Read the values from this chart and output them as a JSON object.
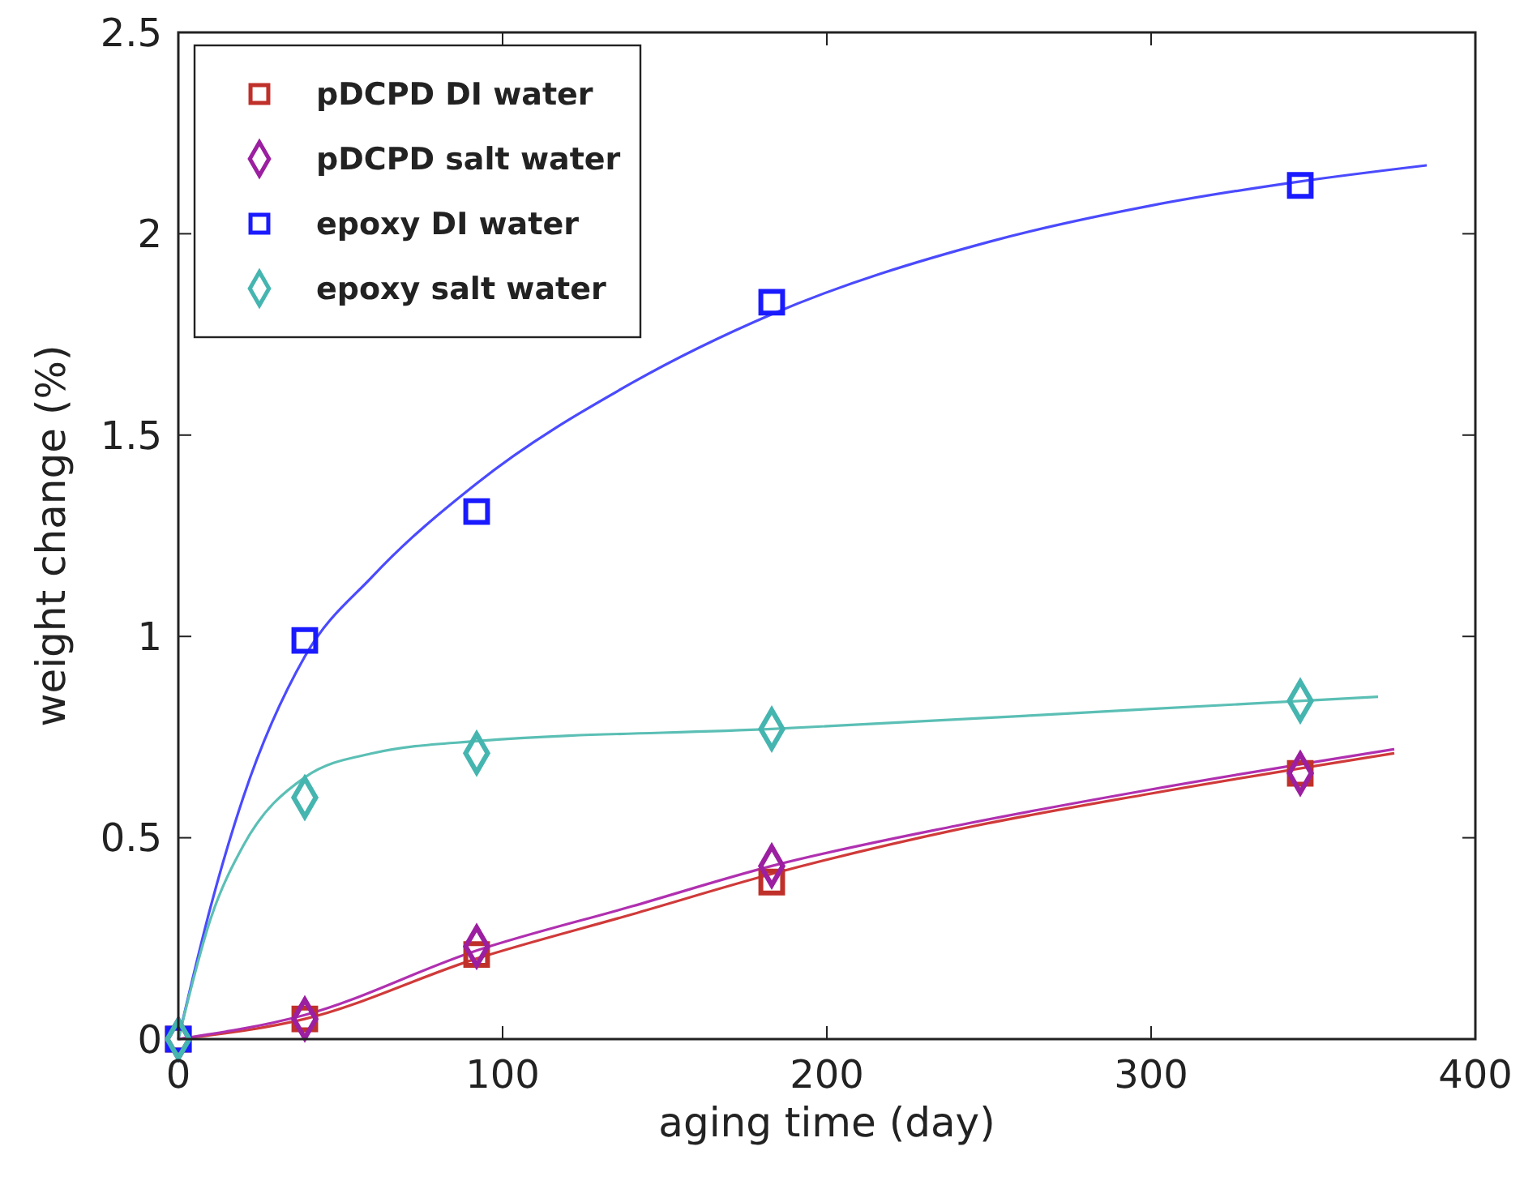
{
  "chart_data": {
    "type": "scatter",
    "xlabel": "aging time (day)",
    "ylabel": "weight change (%)",
    "x": [
      0,
      39,
      92,
      183,
      346
    ],
    "xlim": [
      0,
      400
    ],
    "xticks": [
      0,
      100,
      200,
      300,
      400
    ],
    "ylim": [
      0,
      2.5
    ],
    "yticks": [
      0,
      0.5,
      1,
      1.5,
      2,
      2.5
    ],
    "grid": false,
    "legend": "top left",
    "series": [
      {
        "name": "pDCPD DI water",
        "marker": "square",
        "color": "#c0302a",
        "values": [
          0,
          0.05,
          0.21,
          0.39,
          0.66
        ]
      },
      {
        "name": "pDCPD salt water",
        "marker": "diamond",
        "color": "#9b1fa0",
        "values": [
          0,
          0.05,
          0.23,
          0.43,
          0.66
        ]
      },
      {
        "name": "epoxy DI water",
        "marker": "square",
        "color": "#1a1aff",
        "values": [
          0,
          0.99,
          1.31,
          1.83,
          2.12
        ]
      },
      {
        "name": "epoxy salt water",
        "marker": "diamond",
        "color": "#45b5b0",
        "values": [
          0,
          0.6,
          0.71,
          0.77,
          0.84
        ]
      },
      {
        "type": "line",
        "marker": "none",
        "color": "#d03a3a",
        "x": [
          0,
          39,
          92,
          140,
          183,
          240,
          300,
          375
        ],
        "values": [
          0,
          0.05,
          0.2,
          0.31,
          0.41,
          0.52,
          0.61,
          0.71
        ]
      },
      {
        "type": "line",
        "marker": "none",
        "color": "#b030b0",
        "x": [
          0,
          39,
          92,
          140,
          183,
          240,
          300,
          375
        ],
        "values": [
          0,
          0.06,
          0.22,
          0.33,
          0.43,
          0.53,
          0.62,
          0.72
        ]
      },
      {
        "type": "line",
        "marker": "none",
        "color": "#4a4aff",
        "x": [
          0,
          10,
          20,
          39,
          60,
          92,
          140,
          183,
          250,
          300,
          346,
          385
        ],
        "values": [
          0,
          0.33,
          0.6,
          0.95,
          1.15,
          1.38,
          1.63,
          1.8,
          1.98,
          2.07,
          2.13,
          2.17
        ]
      },
      {
        "type": "line",
        "marker": "none",
        "color": "#5bbfb5",
        "x": [
          0,
          10,
          20,
          39,
          60,
          92,
          183,
          300,
          370
        ],
        "values": [
          0,
          0.3,
          0.48,
          0.65,
          0.71,
          0.74,
          0.77,
          0.82,
          0.85
        ]
      }
    ]
  }
}
